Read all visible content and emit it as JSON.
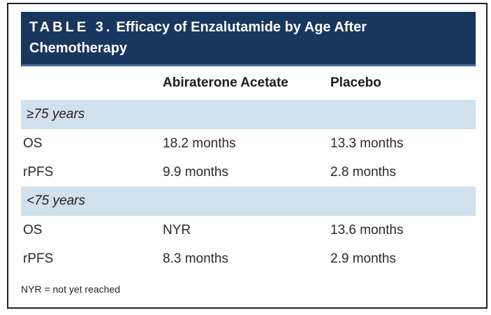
{
  "table": {
    "number_label": "TABLE 3.",
    "title": "Efficacy of Enzalutamide by Age After Chemotherapy",
    "columns": {
      "metric": "",
      "treatment": "Abiraterone Acetate",
      "placebo": "Placebo"
    },
    "sections": [
      {
        "label": "≥75 years",
        "rows": [
          {
            "metric": "OS",
            "treatment": "18.2 months",
            "placebo": "13.3 months"
          },
          {
            "metric": "rPFS",
            "treatment": "9.9 months",
            "placebo": "2.8 months"
          }
        ]
      },
      {
        "label": "<75 years",
        "rows": [
          {
            "metric": "OS",
            "treatment": "NYR",
            "placebo": "13.6 months"
          },
          {
            "metric": "rPFS",
            "treatment": "8.3 months",
            "placebo": "2.9 months"
          }
        ]
      }
    ],
    "footnote": "NYR = not yet reached"
  },
  "colors": {
    "header_navy": "#17375f",
    "header_underline": "#46699b",
    "band_blue": "#d1e1ed",
    "text_dark": "#231f20",
    "frame_border": "#231f20",
    "title_text": "#ffffff"
  },
  "chart_data": {
    "type": "table",
    "title": "TABLE 3. Efficacy of Enzalutamide by Age After Chemotherapy",
    "columns": [
      "",
      "Abiraterone Acetate",
      "Placebo"
    ],
    "rows": [
      [
        "≥75 years",
        "",
        ""
      ],
      [
        "OS",
        "18.2 months",
        "13.3 months"
      ],
      [
        "rPFS",
        "9.9 months",
        "2.8 months"
      ],
      [
        "<75 years",
        "",
        ""
      ],
      [
        "OS",
        "NYR",
        "13.6 months"
      ],
      [
        "rPFS",
        "8.3 months",
        "2.9 months"
      ]
    ],
    "footnote": "NYR = not yet reached"
  }
}
